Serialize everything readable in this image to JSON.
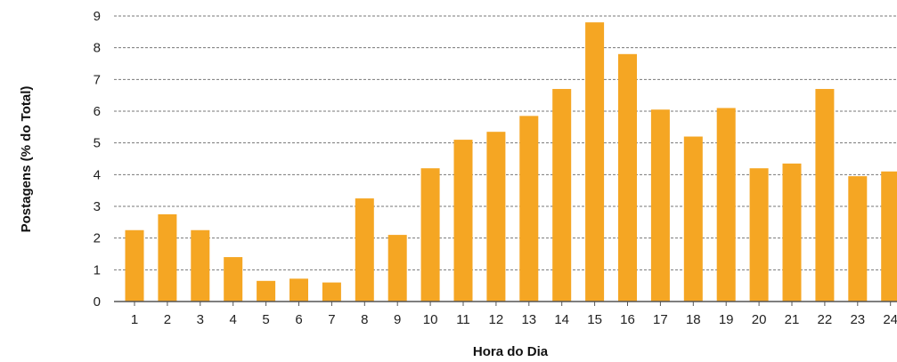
{
  "colors": {
    "bar": "#F5A623",
    "grid": "#777777",
    "axis": "#555555"
  },
  "chart_data": {
    "type": "bar",
    "title": "",
    "xlabel": "Hora do Dia",
    "ylabel": "Postagens (% do Total)",
    "categories": [
      "1",
      "2",
      "3",
      "4",
      "5",
      "6",
      "7",
      "8",
      "9",
      "10",
      "11",
      "12",
      "13",
      "14",
      "15",
      "16",
      "17",
      "18",
      "19",
      "20",
      "21",
      "22",
      "23",
      "24"
    ],
    "values": [
      2.25,
      2.75,
      2.25,
      1.4,
      0.65,
      0.72,
      0.6,
      3.25,
      2.1,
      4.2,
      5.1,
      5.35,
      5.85,
      6.7,
      8.8,
      7.8,
      6.05,
      5.2,
      6.1,
      4.2,
      4.35,
      6.7,
      3.95,
      4.1
    ],
    "yticks": [
      "0",
      "1",
      "2",
      "3",
      "4",
      "5",
      "6",
      "7",
      "8",
      "9"
    ],
    "ylim": [
      0,
      9
    ],
    "grid": true,
    "legend": "none"
  }
}
